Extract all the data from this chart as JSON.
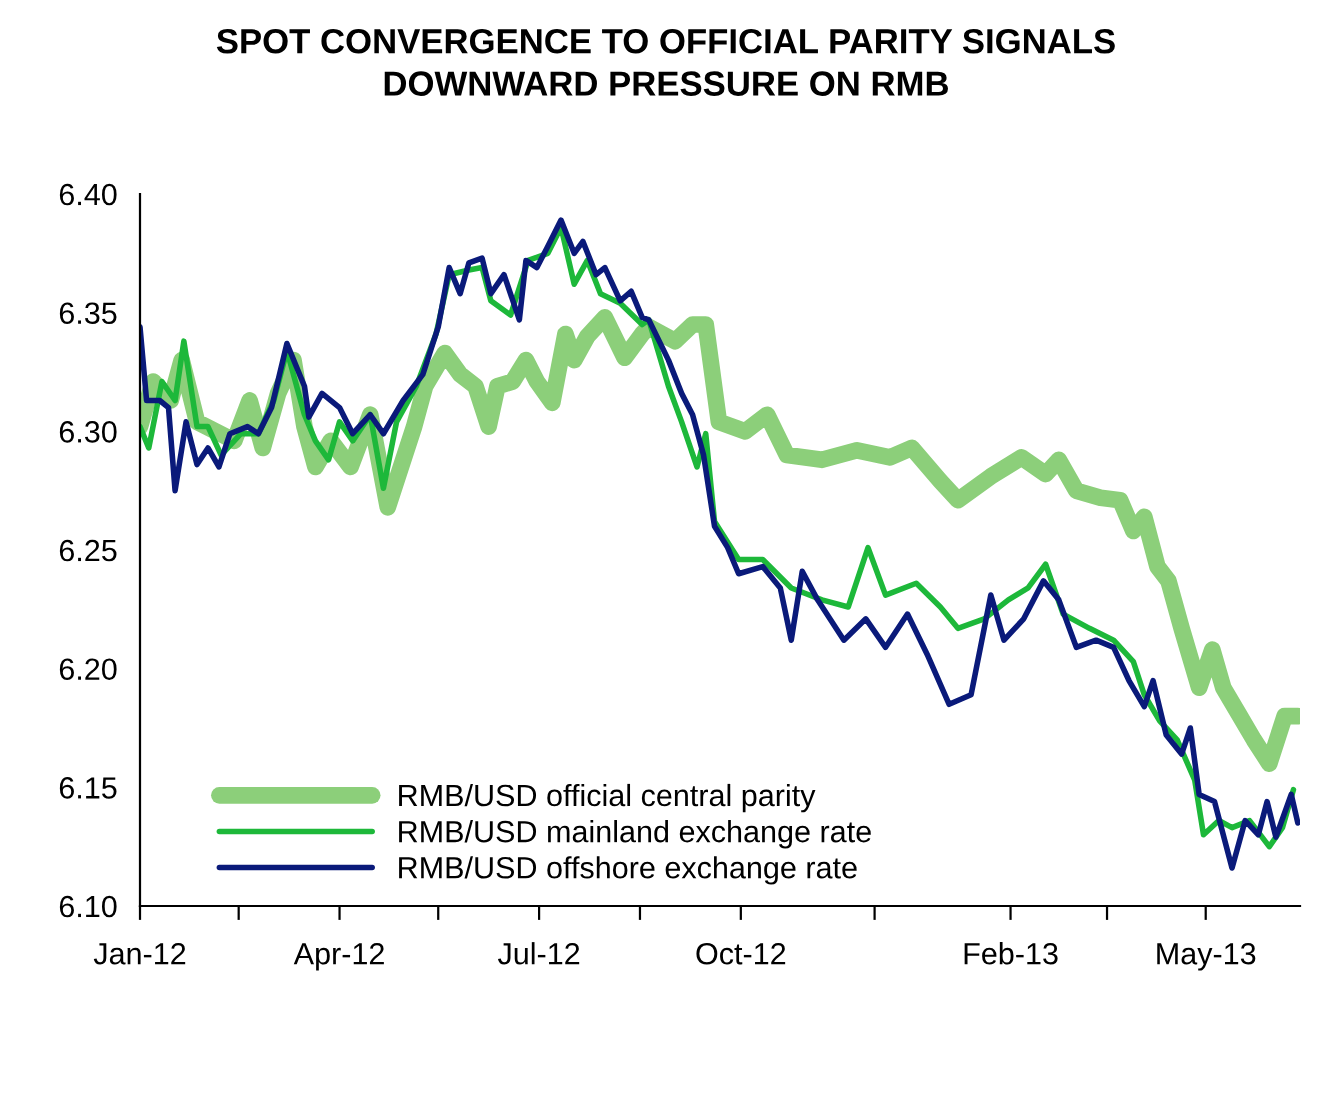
{
  "chart_data": {
    "type": "line",
    "title": "SPOT CONVERGENCE TO OFFICIAL PARITY SIGNALS\nDOWNWARD PRESSURE ON RMB",
    "xlim": [
      "2012-01-01",
      "2013-06-13"
    ],
    "ylim": [
      6.1,
      6.4
    ],
    "xticks": [
      {
        "value": "2012-01-01",
        "label": "Jan-12"
      },
      {
        "value": "2012-02-15",
        "label": null
      },
      {
        "value": "2012-04-01",
        "label": "Apr-12"
      },
      {
        "value": "2012-05-16",
        "label": null
      },
      {
        "value": "2012-07-01",
        "label": "Jul-12"
      },
      {
        "value": "2012-08-16",
        "label": null
      },
      {
        "value": "2012-10-01",
        "label": "Oct-12"
      },
      {
        "value": "2012-12-01",
        "label": null
      },
      {
        "value": "2013-02-01",
        "label": "Feb-13"
      },
      {
        "value": "2013-03-17",
        "label": null
      },
      {
        "value": "2013-05-01",
        "label": "May-13"
      }
    ],
    "yticks": [
      {
        "value": 6.1,
        "label": "6.10"
      },
      {
        "value": 6.15,
        "label": "6.15"
      },
      {
        "value": 6.2,
        "label": "6.20"
      },
      {
        "value": 6.25,
        "label": "6.25"
      },
      {
        "value": 6.3,
        "label": "6.30"
      },
      {
        "value": 6.35,
        "label": "6.35"
      },
      {
        "value": 6.4,
        "label": "6.40"
      }
    ],
    "grid": false,
    "legend": "bottom left",
    "marker": "none",
    "line_style": "solid",
    "series": [
      {
        "name": "RMB/USD official central parity",
        "color": "#8ccf7a",
        "x": [
          "2012-01-01",
          "2012-01-07",
          "2012-01-15",
          "2012-01-20",
          "2012-01-27",
          "2012-02-13",
          "2012-02-20",
          "2012-02-26",
          "2012-03-04",
          "2012-03-11",
          "2012-03-16",
          "2012-03-21",
          "2012-03-28",
          "2012-04-06",
          "2012-04-15",
          "2012-04-23",
          "2012-04-29",
          "2012-05-05",
          "2012-05-10",
          "2012-05-19",
          "2012-05-26",
          "2012-06-02",
          "2012-06-08",
          "2012-06-12",
          "2012-06-19",
          "2012-06-25",
          "2012-06-30",
          "2012-07-07",
          "2012-07-13",
          "2012-07-17",
          "2012-07-23",
          "2012-07-31",
          "2012-08-09",
          "2012-08-17",
          "2012-08-20",
          "2012-09-01",
          "2012-09-09",
          "2012-09-15",
          "2012-09-21",
          "2012-10-03",
          "2012-10-13",
          "2012-10-22",
          "2012-11-07",
          "2012-11-23",
          "2012-12-08",
          "2012-12-18",
          "2012-12-31",
          "2013-01-08",
          "2013-01-23",
          "2013-02-06",
          "2013-02-17",
          "2013-02-23",
          "2013-03-03",
          "2013-03-14",
          "2013-03-23",
          "2013-03-29",
          "2013-04-03",
          "2013-04-09",
          "2013-04-14",
          "2013-04-20",
          "2013-04-28",
          "2013-05-04",
          "2013-05-09",
          "2013-05-16",
          "2013-05-23",
          "2013-05-30",
          "2013-06-06",
          "2013-06-12"
        ],
        "values": [
          6.302,
          6.321,
          6.313,
          6.33,
          6.304,
          6.296,
          6.313,
          6.293,
          6.316,
          6.33,
          6.302,
          6.285,
          6.296,
          6.285,
          6.307,
          6.268,
          6.285,
          6.302,
          6.319,
          6.333,
          6.324,
          6.319,
          6.302,
          6.319,
          6.321,
          6.33,
          6.321,
          6.312,
          6.341,
          6.33,
          6.34,
          6.348,
          6.331,
          6.341,
          6.344,
          6.338,
          6.345,
          6.345,
          6.304,
          6.3,
          6.307,
          6.29,
          6.288,
          6.292,
          6.289,
          6.293,
          6.279,
          6.271,
          6.281,
          6.289,
          6.282,
          6.288,
          6.275,
          6.272,
          6.271,
          6.258,
          6.264,
          6.243,
          6.237,
          6.217,
          6.192,
          6.208,
          6.192,
          6.181,
          6.17,
          6.16,
          6.18,
          6.18
        ]
      },
      {
        "name": "RMB/USD mainland exchange rate",
        "color": "#1db83a",
        "x": [
          "2012-01-01",
          "2012-01-05",
          "2012-01-11",
          "2012-01-17",
          "2012-01-21",
          "2012-01-27",
          "2012-02-01",
          "2012-02-07",
          "2012-02-16",
          "2012-02-24",
          "2012-03-02",
          "2012-03-08",
          "2012-03-16",
          "2012-03-21",
          "2012-03-27",
          "2012-04-01",
          "2012-04-07",
          "2012-04-15",
          "2012-04-21",
          "2012-04-27",
          "2012-05-06",
          "2012-05-15",
          "2012-05-21",
          "2012-05-30",
          "2012-06-05",
          "2012-06-09",
          "2012-06-18",
          "2012-06-26",
          "2012-07-05",
          "2012-07-11",
          "2012-07-17",
          "2012-07-23",
          "2012-07-29",
          "2012-08-07",
          "2012-08-17",
          "2012-08-20",
          "2012-08-29",
          "2012-09-04",
          "2012-09-11",
          "2012-09-15",
          "2012-09-19",
          "2012-09-30",
          "2012-10-11",
          "2012-10-24",
          "2012-11-07",
          "2012-11-19",
          "2012-11-28",
          "2012-12-06",
          "2012-12-20",
          "2012-12-31",
          "2013-01-08",
          "2013-01-20",
          "2013-01-31",
          "2013-02-09",
          "2013-02-17",
          "2013-02-25",
          "2013-03-09",
          "2013-03-20",
          "2013-03-29",
          "2013-04-03",
          "2013-04-10",
          "2013-04-18",
          "2013-04-26",
          "2013-04-30",
          "2013-05-07",
          "2013-05-13",
          "2013-05-21",
          "2013-05-30",
          "2013-06-05",
          "2013-06-10"
        ],
        "values": [
          6.302,
          6.293,
          6.321,
          6.313,
          6.338,
          6.302,
          6.302,
          6.29,
          6.299,
          6.299,
          6.313,
          6.334,
          6.307,
          6.296,
          6.288,
          6.304,
          6.296,
          6.307,
          6.276,
          6.304,
          6.319,
          6.341,
          6.366,
          6.368,
          6.369,
          6.355,
          6.349,
          6.372,
          6.375,
          6.386,
          6.362,
          6.372,
          6.358,
          6.354,
          6.345,
          6.347,
          6.319,
          6.304,
          6.285,
          6.299,
          6.262,
          6.246,
          6.246,
          6.234,
          6.229,
          6.226,
          6.251,
          6.231,
          6.236,
          6.226,
          6.217,
          6.221,
          6.229,
          6.234,
          6.244,
          6.223,
          6.217,
          6.212,
          6.203,
          6.189,
          6.178,
          6.17,
          6.153,
          6.13,
          6.136,
          6.133,
          6.136,
          6.125,
          6.133,
          6.149
        ]
      },
      {
        "name": "RMB/USD offshore exchange rate",
        "color": "#0a1a7a",
        "x": [
          "2012-01-01",
          "2012-01-04",
          "2012-01-10",
          "2012-01-14",
          "2012-01-17",
          "2012-01-22",
          "2012-01-27",
          "2012-02-01",
          "2012-02-06",
          "2012-02-11",
          "2012-02-19",
          "2012-02-24",
          "2012-03-01",
          "2012-03-08",
          "2012-03-16",
          "2012-03-18",
          "2012-03-24",
          "2012-04-01",
          "2012-04-07",
          "2012-04-15",
          "2012-04-21",
          "2012-04-30",
          "2012-05-09",
          "2012-05-16",
          "2012-05-21",
          "2012-05-26",
          "2012-05-30",
          "2012-06-05",
          "2012-06-09",
          "2012-06-15",
          "2012-06-22",
          "2012-06-25",
          "2012-06-30",
          "2012-07-05",
          "2012-07-11",
          "2012-07-17",
          "2012-07-21",
          "2012-07-27",
          "2012-07-31",
          "2012-08-07",
          "2012-08-12",
          "2012-08-17",
          "2012-08-20",
          "2012-08-29",
          "2012-09-04",
          "2012-09-09",
          "2012-09-14",
          "2012-09-19",
          "2012-09-25",
          "2012-09-30",
          "2012-10-11",
          "2012-10-19",
          "2012-10-24",
          "2012-10-29",
          "2012-11-05",
          "2012-11-17",
          "2012-11-27",
          "2012-12-06",
          "2012-12-16",
          "2012-12-25",
          "2013-01-04",
          "2013-01-14",
          "2013-01-23",
          "2013-01-29",
          "2013-02-07",
          "2013-02-16",
          "2013-02-23",
          "2013-03-03",
          "2013-03-12",
          "2013-03-20",
          "2013-03-27",
          "2013-04-03",
          "2013-04-07",
          "2013-04-13",
          "2013-04-20",
          "2013-04-24",
          "2013-04-28",
          "2013-05-05",
          "2013-05-13",
          "2013-05-19",
          "2013-05-25",
          "2013-05-29",
          "2013-06-02",
          "2013-06-09",
          "2013-06-12"
        ],
        "values": [
          6.344,
          6.313,
          6.313,
          6.31,
          6.275,
          6.304,
          6.286,
          6.293,
          6.285,
          6.299,
          6.302,
          6.299,
          6.31,
          6.337,
          6.319,
          6.306,
          6.316,
          6.31,
          6.299,
          6.307,
          6.299,
          6.313,
          6.324,
          6.344,
          6.369,
          6.358,
          6.371,
          6.373,
          6.358,
          6.366,
          6.347,
          6.372,
          6.369,
          6.378,
          6.389,
          6.375,
          6.38,
          6.366,
          6.369,
          6.355,
          6.359,
          6.348,
          6.347,
          6.33,
          6.316,
          6.307,
          6.29,
          6.26,
          6.251,
          6.24,
          6.243,
          6.234,
          6.212,
          6.241,
          6.229,
          6.212,
          6.221,
          6.209,
          6.223,
          6.206,
          6.185,
          6.189,
          6.231,
          6.212,
          6.221,
          6.237,
          6.229,
          6.209,
          6.212,
          6.209,
          6.195,
          6.184,
          6.195,
          6.172,
          6.164,
          6.175,
          6.147,
          6.144,
          6.116,
          6.136,
          6.13,
          6.144,
          6.129,
          6.147,
          6.135
        ]
      }
    ]
  }
}
